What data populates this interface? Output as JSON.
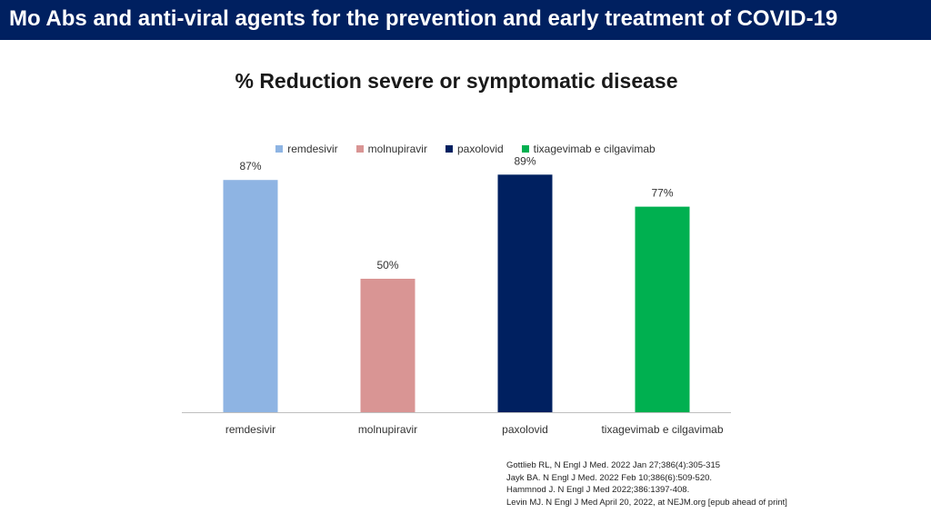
{
  "header": {
    "title": "Mo Abs and anti-viral agents for the prevention and early treatment of COVID-19"
  },
  "chart_data": {
    "type": "bar",
    "title": "% Reduction severe or symptomatic disease",
    "categories": [
      "remdesivir",
      "molnupiravir",
      "paxolovid",
      "tixagevimab e cilgavimab"
    ],
    "values": [
      87,
      50,
      89,
      77
    ],
    "data_labels": [
      "87%",
      "50%",
      "89%",
      "77%"
    ],
    "colors": [
      "#8EB4E3",
      "#D99594",
      "#002060",
      "#00B050"
    ],
    "legend": {
      "placement": "top",
      "entries": [
        "remdesivir",
        "molnupiravir",
        "paxolovid",
        "tixagevimab e cilgavimab"
      ]
    },
    "ylim": [
      0,
      100
    ],
    "grid": false
  },
  "references": [
    "Gottlieb RL, N Engl J Med. 2022 Jan 27;386(4):305-315",
    "Jayk BA. N Engl J Med. 2022 Feb 10;386(6):509-520.",
    "Hammnod J. N Engl J Med 2022;386:1397-408.",
    "Levin MJ. N Engl J Med April 20, 2022, at NEJM.org [epub ahead of print]"
  ]
}
